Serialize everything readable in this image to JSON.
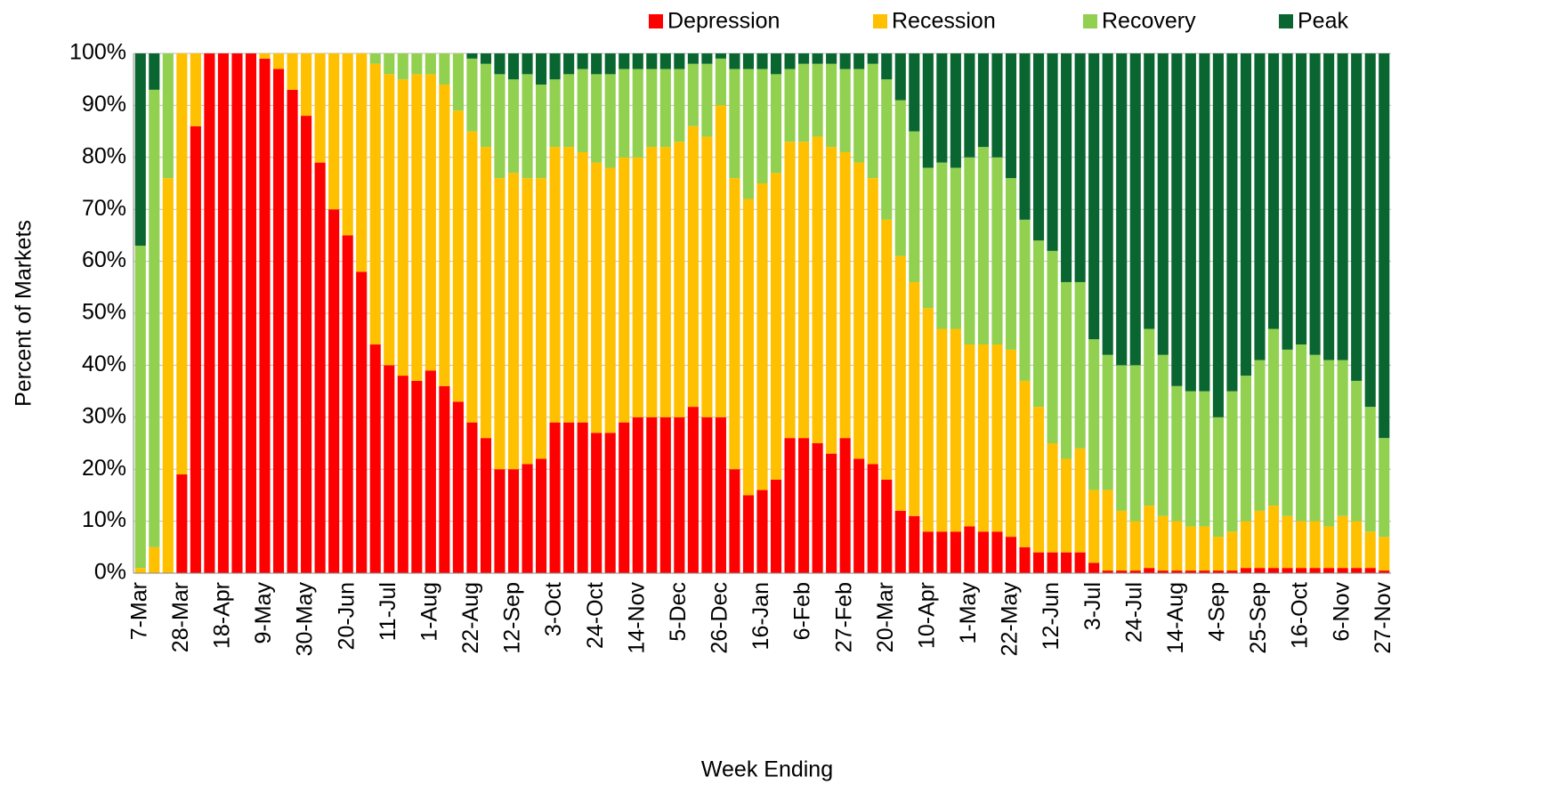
{
  "chart_data": {
    "type": "stacked_bar",
    "x_label": "Week Ending",
    "y_label": "Percent of Markets",
    "categories": [
      "7-Mar",
      null,
      null,
      "28-Mar",
      null,
      null,
      "18-Apr",
      null,
      null,
      "9-May",
      null,
      null,
      "30-May",
      null,
      null,
      "20-Jun",
      null,
      null,
      "11-Jul",
      null,
      null,
      "1-Aug",
      null,
      null,
      "22-Aug",
      null,
      null,
      "12-Sep",
      null,
      null,
      "3-Oct",
      null,
      null,
      "24-Oct",
      null,
      null,
      "14-Nov",
      null,
      null,
      "5-Dec",
      null,
      null,
      "26-Dec",
      null,
      null,
      "16-Jan",
      null,
      null,
      "6-Feb",
      null,
      null,
      "27-Feb",
      null,
      null,
      "20-Mar",
      null,
      null,
      "10-Apr",
      null,
      null,
      "1-May",
      null,
      null,
      "22-May",
      null,
      null,
      "12-Jun",
      null,
      null,
      "3-Jul",
      null,
      null,
      "24-Jul",
      null,
      null,
      "14-Aug",
      null,
      null,
      "4-Sep",
      null,
      null,
      "25-Sep",
      null,
      null,
      "16-Oct",
      null,
      null,
      "6-Nov",
      null,
      null,
      "27-Nov"
    ],
    "series": [
      {
        "name": "Depression",
        "color": "#ff0000",
        "values": [
          0,
          0,
          0,
          19,
          86,
          100,
          100,
          100,
          100,
          99,
          97,
          93,
          88,
          79,
          70,
          65,
          58,
          44,
          40,
          38,
          37,
          39,
          36,
          33,
          29,
          26,
          20,
          20,
          21,
          22,
          29,
          29,
          29,
          27,
          27,
          29,
          30,
          30,
          30,
          30,
          32,
          30,
          30,
          20,
          15,
          16,
          18,
          26,
          26,
          25,
          23,
          26,
          22,
          21,
          18,
          12,
          11,
          8,
          8,
          8,
          9,
          8,
          8,
          7,
          5,
          4,
          4,
          4,
          4,
          2,
          0.5,
          0.5,
          0.5,
          1,
          0.5,
          0.5,
          0.5,
          0.5,
          0.5,
          0.5,
          1,
          1,
          1,
          1,
          1,
          1,
          1,
          1,
          1,
          1,
          0.5
        ]
      },
      {
        "name": "Recession",
        "color": "#ffc000",
        "values": [
          1,
          5,
          76,
          81,
          14,
          0,
          0,
          0,
          0,
          1,
          3,
          7,
          12,
          21,
          30,
          35,
          42,
          54,
          56,
          57,
          59,
          57,
          58,
          56,
          56,
          56,
          56,
          57,
          55,
          54,
          53,
          53,
          52,
          52,
          51,
          51,
          50,
          52,
          52,
          53,
          54,
          54,
          60,
          56,
          57,
          59,
          59,
          57,
          57,
          59,
          59,
          55,
          57,
          55,
          50,
          49,
          45,
          43,
          39,
          39,
          35,
          36,
          36,
          36,
          32,
          28,
          21,
          18,
          20,
          14,
          15.5,
          11.5,
          9.5,
          12,
          10.5,
          9.5,
          8.5,
          8.5,
          6.5,
          7.5,
          9,
          11,
          12,
          10,
          9,
          9,
          8,
          10,
          9,
          7,
          6.5
        ]
      },
      {
        "name": "Recovery",
        "color": "#92d050",
        "values": [
          62,
          88,
          24,
          0,
          0,
          0,
          0,
          0,
          0,
          0,
          0,
          0,
          0,
          0,
          0,
          0,
          0,
          2,
          4,
          5,
          4,
          4,
          6,
          11,
          14,
          16,
          20,
          18,
          20,
          18,
          13,
          14,
          16,
          17,
          18,
          17,
          17,
          15,
          15,
          14,
          12,
          14,
          9,
          21,
          25,
          22,
          19,
          14,
          15,
          14,
          16,
          16,
          18,
          22,
          27,
          30,
          29,
          27,
          32,
          31,
          36,
          38,
          36,
          33,
          31,
          32,
          37,
          34,
          32,
          29,
          26,
          28,
          30,
          34,
          31,
          26,
          26,
          26,
          23,
          27,
          28,
          29,
          34,
          32,
          34,
          32,
          32,
          30,
          27,
          24,
          19
        ]
      },
      {
        "name": "Peak",
        "color": "#0a6630",
        "values": [
          37,
          7,
          0,
          0,
          0,
          0,
          0,
          0,
          0,
          0,
          0,
          0,
          0,
          0,
          0,
          0,
          0,
          0,
          0,
          0,
          0,
          0,
          0,
          0,
          1,
          2,
          4,
          5,
          4,
          6,
          5,
          4,
          3,
          4,
          4,
          3,
          3,
          3,
          3,
          3,
          2,
          2,
          1,
          3,
          3,
          3,
          4,
          3,
          2,
          2,
          2,
          3,
          3,
          2,
          5,
          9,
          15,
          22,
          21,
          22,
          20,
          18,
          20,
          24,
          32,
          36,
          38,
          44,
          44,
          55,
          58,
          60,
          60,
          53,
          58,
          64,
          65,
          65,
          70,
          65,
          62,
          59,
          53,
          57,
          56,
          58,
          59,
          59,
          63,
          68,
          74
        ]
      }
    ],
    "ylim": [
      0,
      100
    ],
    "yticks": [
      {
        "value": 0,
        "label": "0%"
      },
      {
        "value": 10,
        "label": "10%"
      },
      {
        "value": 20,
        "label": "20%"
      },
      {
        "value": 30,
        "label": "30%"
      },
      {
        "value": 40,
        "label": "40%"
      },
      {
        "value": 50,
        "label": "50%"
      },
      {
        "value": 60,
        "label": "60%"
      },
      {
        "value": 70,
        "label": "70%"
      },
      {
        "value": 80,
        "label": "80%"
      },
      {
        "value": 90,
        "label": "90%"
      },
      {
        "value": 100,
        "label": "100%"
      }
    ],
    "grid": true,
    "legend": "top-right"
  }
}
